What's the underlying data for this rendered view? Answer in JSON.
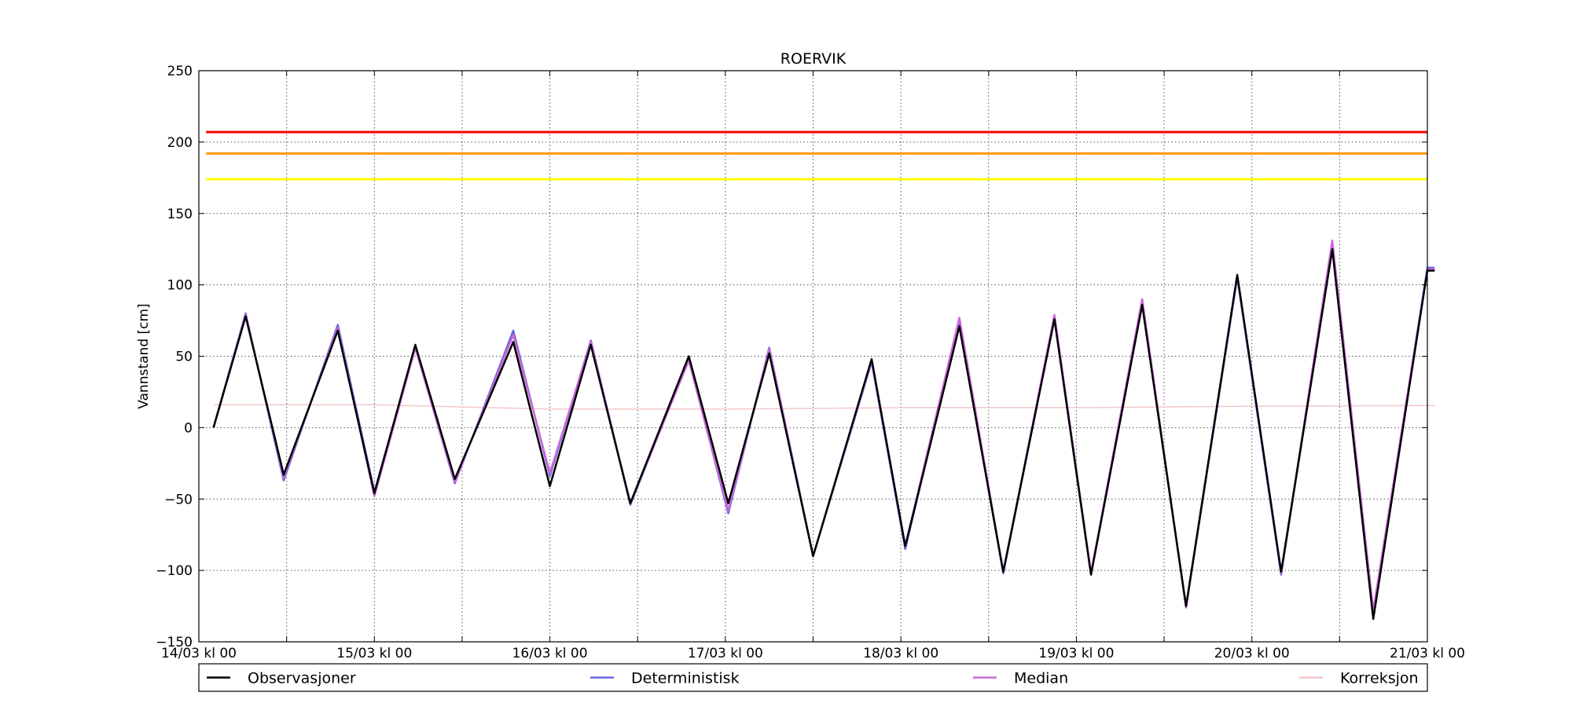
{
  "chart_data": {
    "type": "line",
    "title": "ROERVIK",
    "xlabel": "",
    "ylabel": "Vannstand [cm]",
    "ylim": [
      -150,
      250
    ],
    "yticks": [
      250,
      200,
      150,
      100,
      50,
      0,
      -50,
      -100,
      -150
    ],
    "yticklabels": [
      "250",
      "200",
      "150",
      "100",
      "50",
      "0",
      "−50",
      "−100",
      "−150"
    ],
    "xrange_hours": [
      0,
      168
    ],
    "xticks_hours": [
      0,
      12,
      24,
      36,
      48,
      60,
      72,
      84,
      96,
      108,
      120,
      132,
      144,
      156,
      168
    ],
    "xticklabels": [
      {
        "hour": 0,
        "label": "14/03 kl 00"
      },
      {
        "hour": 24,
        "label": "15/03 kl 00"
      },
      {
        "hour": 48,
        "label": "16/03 kl 00"
      },
      {
        "hour": 72,
        "label": "17/03 kl 00"
      },
      {
        "hour": 96,
        "label": "18/03 kl 00"
      },
      {
        "hour": 120,
        "label": "19/03 kl 00"
      },
      {
        "hour": 144,
        "label": "20/03 kl 00"
      },
      {
        "hour": 168,
        "label": "21/03 kl 00"
      }
    ],
    "grid": true,
    "legend_position": "bottom",
    "threshold_lines": [
      {
        "value": 207,
        "color": "#ff0000"
      },
      {
        "value": 192,
        "color": "#ff9900"
      },
      {
        "value": 174,
        "color": "#ffff00"
      }
    ],
    "series": [
      {
        "name": "Observasjoner",
        "color": "#000000",
        "points": [
          [
            1,
            0
          ],
          [
            3.2,
            78
          ],
          [
            5.8,
            -33
          ],
          [
            9.5,
            68
          ],
          [
            12,
            -46
          ],
          [
            14.8,
            58
          ],
          [
            17.5,
            -36
          ],
          [
            21.5,
            60
          ],
          [
            24,
            -41
          ],
          [
            26.8,
            58
          ],
          [
            29.5,
            -53
          ],
          [
            33.5,
            50
          ],
          [
            36.2,
            -53
          ],
          [
            39,
            52
          ],
          [
            42,
            -90
          ],
          [
            46,
            48
          ],
          [
            48.3,
            -83
          ],
          [
            52,
            71
          ],
          [
            55,
            -101
          ],
          [
            58.5,
            76
          ],
          [
            61,
            -103
          ],
          [
            64.5,
            86
          ],
          [
            67.5,
            -125
          ],
          [
            71,
            107
          ],
          [
            74,
            -101
          ],
          [
            77.5,
            125
          ],
          [
            80.3,
            -134
          ],
          [
            84,
            110
          ],
          [
            84.5,
            110
          ]
        ]
      },
      {
        "name": "Deterministisk",
        "color": "#6666dd",
        "points": [
          [
            1,
            0
          ],
          [
            3.2,
            80
          ],
          [
            5.8,
            -37
          ],
          [
            9.5,
            72
          ],
          [
            12,
            -45
          ],
          [
            14.8,
            56
          ],
          [
            17.5,
            -39
          ],
          [
            21.5,
            68
          ],
          [
            24,
            -34
          ],
          [
            26.8,
            61
          ],
          [
            29.5,
            -54
          ],
          [
            33.5,
            48
          ],
          [
            36.2,
            -60
          ],
          [
            39,
            56
          ],
          [
            42,
            -90
          ],
          [
            46,
            46
          ],
          [
            48.3,
            -85
          ],
          [
            52,
            75
          ],
          [
            55,
            -102
          ],
          [
            58.5,
            78
          ],
          [
            61,
            -102
          ],
          [
            64.5,
            88
          ],
          [
            67.5,
            -126
          ],
          [
            71,
            105
          ],
          [
            74,
            -103
          ],
          [
            77.5,
            130
          ],
          [
            80.3,
            -130
          ],
          [
            84,
            112
          ],
          [
            84.5,
            112
          ]
        ]
      },
      {
        "name": "Median",
        "color": "#cc66dd",
        "points": [
          [
            1,
            0
          ],
          [
            3.2,
            79
          ],
          [
            5.8,
            -35
          ],
          [
            9.5,
            70
          ],
          [
            12,
            -48
          ],
          [
            14.8,
            56
          ],
          [
            17.5,
            -38
          ],
          [
            21.5,
            65
          ],
          [
            24,
            -32
          ],
          [
            26.8,
            60
          ],
          [
            29.5,
            -53
          ],
          [
            33.5,
            47
          ],
          [
            36.2,
            -58
          ],
          [
            39,
            55
          ],
          [
            42,
            -90
          ],
          [
            46,
            47
          ],
          [
            48.3,
            -83
          ],
          [
            52,
            77
          ],
          [
            55,
            -101
          ],
          [
            58.5,
            79
          ],
          [
            61,
            -102
          ],
          [
            64.5,
            90
          ],
          [
            67.5,
            -126
          ],
          [
            71,
            106
          ],
          [
            74,
            -102
          ],
          [
            77.5,
            131
          ],
          [
            80.3,
            -128
          ],
          [
            84,
            111
          ],
          [
            84.5,
            111
          ]
        ]
      },
      {
        "name": "Korreksjon",
        "color": "#f4c8c8",
        "points": [
          [
            1,
            16
          ],
          [
            12,
            16
          ],
          [
            24,
            13
          ],
          [
            36,
            13
          ],
          [
            48,
            14
          ],
          [
            60,
            14
          ],
          [
            72,
            15
          ],
          [
            84,
            15.5
          ],
          [
            84.5,
            15.5
          ]
        ]
      }
    ]
  }
}
